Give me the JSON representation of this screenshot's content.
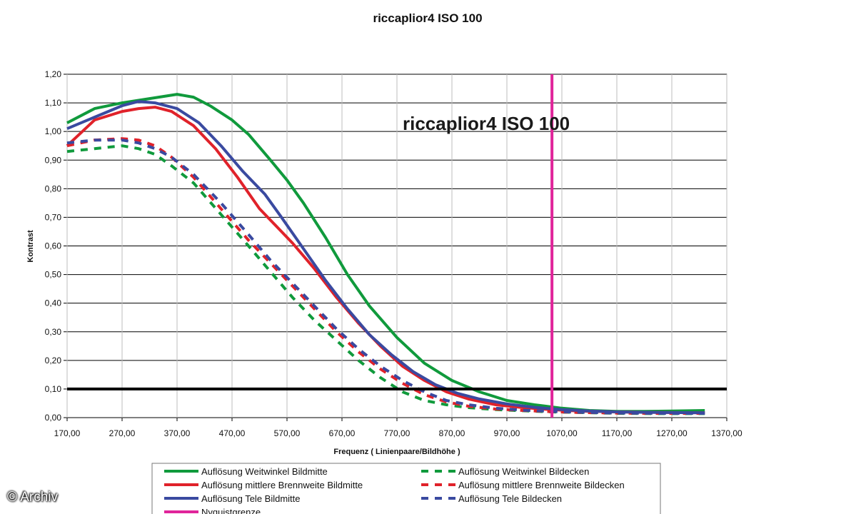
{
  "chart_data": {
    "type": "line",
    "title": "riccaplior4   ISO 100",
    "annotation": "riccaplior4   ISO 100",
    "xlabel": "Frequenz ( Linienpaare/Bildhöhe )",
    "ylabel": "Kontrast",
    "xlim": [
      170,
      1370
    ],
    "ylim": [
      0,
      1.2
    ],
    "x_ticks": [
      "170,00",
      "270,00",
      "370,00",
      "470,00",
      "570,00",
      "670,00",
      "770,00",
      "870,00",
      "970,00",
      "1070,00",
      "1170,00",
      "1270,00",
      "1370,00"
    ],
    "y_ticks": [
      "0,00",
      "0,10",
      "0,20",
      "0,30",
      "0,40",
      "0,50",
      "0,60",
      "0,70",
      "0,80",
      "0,90",
      "1,00",
      "1,10",
      "1,20"
    ],
    "grid": true,
    "legend_position": "bottom",
    "reference_lines": [
      {
        "axis": "y",
        "value": 0.1,
        "color": "#000000"
      },
      {
        "axis": "x",
        "value": 1052,
        "color": "#e0249a",
        "name": "Nyquistgrenze"
      }
    ],
    "series": [
      {
        "name": "Auflösung Weitwinkel Bildmitte",
        "color": "#109a3c",
        "style": "solid",
        "x": [
          170,
          220,
          270,
          320,
          370,
          400,
          430,
          470,
          500,
          540,
          570,
          600,
          640,
          680,
          720,
          770,
          820,
          870,
          920,
          970,
          1020,
          1070,
          1120,
          1170,
          1220,
          1270,
          1330
        ],
        "y": [
          1.03,
          1.08,
          1.1,
          1.115,
          1.13,
          1.12,
          1.09,
          1.04,
          0.99,
          0.9,
          0.83,
          0.75,
          0.63,
          0.5,
          0.39,
          0.28,
          0.19,
          0.13,
          0.09,
          0.06,
          0.045,
          0.033,
          0.025,
          0.022,
          0.022,
          0.023,
          0.025
        ]
      },
      {
        "name": "Auflösung Weitwinkel Bildecken",
        "color": "#109a3c",
        "style": "dashed",
        "x": [
          170,
          220,
          270,
          300,
          330,
          360,
          400,
          450,
          500,
          540,
          580,
          620,
          660,
          700,
          740,
          780,
          820,
          860,
          900,
          950,
          1000,
          1050,
          1100,
          1170,
          1250,
          1330
        ],
        "y": [
          0.93,
          0.94,
          0.95,
          0.94,
          0.92,
          0.88,
          0.82,
          0.71,
          0.6,
          0.51,
          0.42,
          0.34,
          0.27,
          0.2,
          0.14,
          0.09,
          0.06,
          0.045,
          0.035,
          0.028,
          0.024,
          0.02,
          0.018,
          0.015,
          0.014,
          0.014
        ]
      },
      {
        "name": "Auflösung mittlere Brennweite Bildmitte",
        "color": "#e0222a",
        "style": "solid",
        "x": [
          170,
          220,
          270,
          300,
          330,
          360,
          400,
          440,
          480,
          520,
          550,
          580,
          620,
          660,
          700,
          740,
          780,
          820,
          860,
          900,
          950,
          1000,
          1050,
          1100,
          1170,
          1250,
          1330
        ],
        "y": [
          0.95,
          1.04,
          1.07,
          1.08,
          1.085,
          1.07,
          1.02,
          0.94,
          0.84,
          0.73,
          0.67,
          0.61,
          0.52,
          0.42,
          0.33,
          0.25,
          0.18,
          0.13,
          0.09,
          0.065,
          0.045,
          0.035,
          0.028,
          0.023,
          0.02,
          0.018,
          0.017
        ]
      },
      {
        "name": "Auflösung mittlere Brennweite Bildecken",
        "color": "#e0222a",
        "style": "dashed",
        "x": [
          170,
          220,
          270,
          300,
          330,
          360,
          400,
          450,
          500,
          540,
          580,
          620,
          660,
          700,
          740,
          780,
          820,
          860,
          900,
          950,
          1000,
          1050,
          1100,
          1170,
          1250,
          1330
        ],
        "y": [
          0.95,
          0.97,
          0.975,
          0.97,
          0.95,
          0.91,
          0.84,
          0.73,
          0.62,
          0.54,
          0.46,
          0.38,
          0.3,
          0.23,
          0.17,
          0.12,
          0.08,
          0.055,
          0.04,
          0.03,
          0.025,
          0.021,
          0.018,
          0.016,
          0.015,
          0.015
        ]
      },
      {
        "name": "Auflösung Tele Bildmitte",
        "color": "#3a4aa0",
        "style": "solid",
        "x": [
          170,
          220,
          270,
          300,
          330,
          370,
          410,
          450,
          490,
          530,
          560,
          600,
          640,
          680,
          720,
          760,
          800,
          840,
          880,
          920,
          970,
          1020,
          1070,
          1120,
          1170,
          1250,
          1330
        ],
        "y": [
          1.01,
          1.05,
          1.09,
          1.105,
          1.1,
          1.08,
          1.03,
          0.95,
          0.86,
          0.78,
          0.7,
          0.59,
          0.48,
          0.38,
          0.29,
          0.22,
          0.16,
          0.115,
          0.085,
          0.065,
          0.048,
          0.036,
          0.028,
          0.023,
          0.02,
          0.018,
          0.017
        ]
      },
      {
        "name": "Auflösung Tele Bildecken",
        "color": "#3a4aa0",
        "style": "dashed",
        "x": [
          170,
          220,
          270,
          300,
          330,
          360,
          400,
          450,
          500,
          540,
          580,
          620,
          660,
          700,
          740,
          780,
          820,
          860,
          900,
          950,
          1000,
          1050,
          1100,
          1170,
          1250,
          1330
        ],
        "y": [
          0.96,
          0.97,
          0.97,
          0.96,
          0.94,
          0.91,
          0.85,
          0.75,
          0.64,
          0.55,
          0.47,
          0.39,
          0.31,
          0.24,
          0.18,
          0.13,
          0.09,
          0.06,
          0.045,
          0.033,
          0.026,
          0.022,
          0.019,
          0.016,
          0.015,
          0.015
        ]
      }
    ],
    "legend": [
      {
        "label": "Auflösung Weitwinkel Bildmitte",
        "color": "#109a3c",
        "style": "solid"
      },
      {
        "label": "Auflösung Weitwinkel Bildecken",
        "color": "#109a3c",
        "style": "dashed"
      },
      {
        "label": "Auflösung mittlere Brennweite Bildmitte",
        "color": "#e0222a",
        "style": "solid"
      },
      {
        "label": "Auflösung mittlere Brennweite Bildecken",
        "color": "#e0222a",
        "style": "dashed"
      },
      {
        "label": "Auflösung Tele Bildmitte",
        "color": "#3a4aa0",
        "style": "solid"
      },
      {
        "label": "Auflösung Tele Bildecken",
        "color": "#3a4aa0",
        "style": "dashed"
      },
      {
        "label": "Nyquistgrenze",
        "color": "#e0249a",
        "style": "solid"
      }
    ]
  },
  "watermark": "© Archiv"
}
